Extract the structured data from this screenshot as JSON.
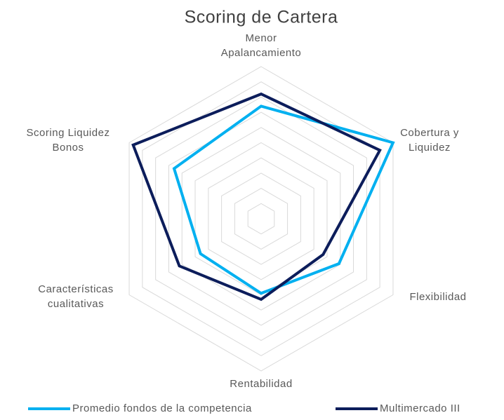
{
  "chart_data": {
    "type": "radar",
    "title": "Scoring de Cartera",
    "categories": [
      [
        "Menor",
        "Apalancamiento"
      ],
      [
        "Cobertura y",
        "Liquidez"
      ],
      [
        "Flexibilidad"
      ],
      [
        "Rentabilidad"
      ],
      [
        "Características",
        "cualitativas"
      ],
      [
        "Scoring Liquidez",
        "Bonos"
      ]
    ],
    "series": [
      {
        "name": "Promedio fondos de la competencia",
        "color": "#00b0f0",
        "values": [
          7.4,
          10,
          5.9,
          4.9,
          4.6,
          6.6
        ]
      },
      {
        "name": "Multimercado III",
        "color": "#0c1d5b",
        "values": [
          8.2,
          9,
          4.7,
          5.3,
          6.2,
          9.7
        ]
      }
    ],
    "rlim": [
      0,
      10
    ],
    "rticks": [
      1,
      2,
      3,
      4,
      5,
      6,
      7,
      8,
      9,
      10
    ],
    "grid": true,
    "legend": "bottom"
  }
}
